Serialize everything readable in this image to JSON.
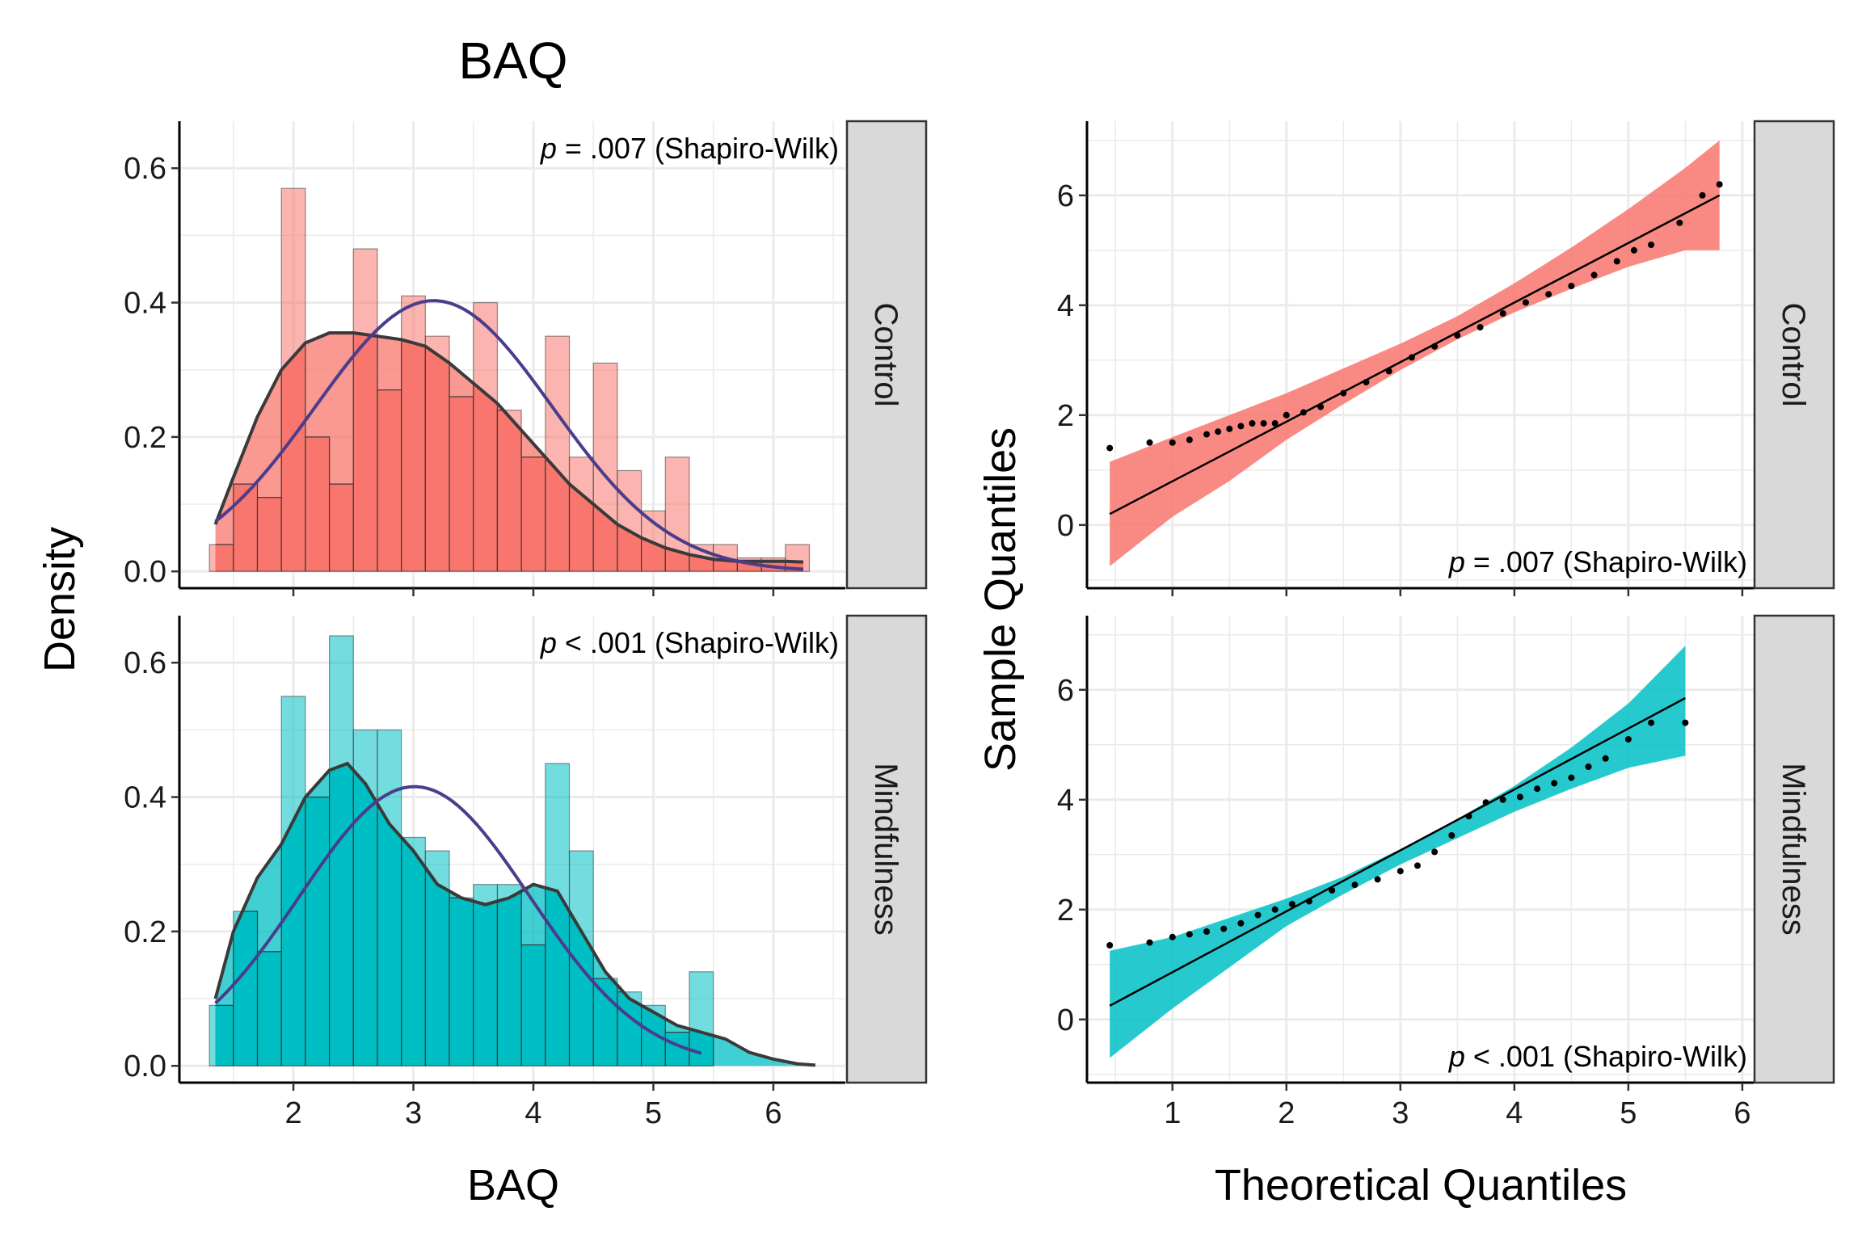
{
  "title": "BAQ",
  "colors": {
    "control": "#F8766D",
    "mindfulness": "#00BFC4",
    "normal_curve": "#4B3C8C",
    "density_curve": "#3A3A3A",
    "strip_fill": "#D9D9D9",
    "grid": "#EBEBEB"
  },
  "chart_data": [
    {
      "type": "bar",
      "panel": "histogram-density",
      "xlabel": "BAQ",
      "ylabel": "Density",
      "xlim": [
        1.05,
        6.6
      ],
      "ylim": [
        -0.025,
        0.67
      ],
      "x_ticks": [
        "2",
        "3",
        "4",
        "5",
        "6"
      ],
      "y_ticks": [
        "0.0",
        "0.2",
        "0.4",
        "0.6"
      ],
      "grid": true,
      "facets": [
        {
          "strip_label": "Control",
          "annotation_p": "p",
          "annotation_rest": " = .007 (Shapiro-Wilk)",
          "bin_width": 0.2,
          "bins": [
            {
              "x0": 1.3,
              "y": 0.04
            },
            {
              "x0": 1.5,
              "y": 0.13
            },
            {
              "x0": 1.7,
              "y": 0.11
            },
            {
              "x0": 1.9,
              "y": 0.57
            },
            {
              "x0": 2.1,
              "y": 0.2
            },
            {
              "x0": 2.3,
              "y": 0.13
            },
            {
              "x0": 2.5,
              "y": 0.48
            },
            {
              "x0": 2.7,
              "y": 0.27
            },
            {
              "x0": 2.9,
              "y": 0.41
            },
            {
              "x0": 3.1,
              "y": 0.35
            },
            {
              "x0": 3.3,
              "y": 0.26
            },
            {
              "x0": 3.5,
              "y": 0.4
            },
            {
              "x0": 3.7,
              "y": 0.24
            },
            {
              "x0": 3.9,
              "y": 0.17
            },
            {
              "x0": 4.1,
              "y": 0.35
            },
            {
              "x0": 4.3,
              "y": 0.17
            },
            {
              "x0": 4.5,
              "y": 0.31
            },
            {
              "x0": 4.7,
              "y": 0.15
            },
            {
              "x0": 4.9,
              "y": 0.09
            },
            {
              "x0": 5.1,
              "y": 0.17
            },
            {
              "x0": 5.3,
              "y": 0.04
            },
            {
              "x0": 5.5,
              "y": 0.04
            },
            {
              "x0": 5.7,
              "y": 0.02
            },
            {
              "x0": 5.9,
              "y": 0.02
            },
            {
              "x0": 6.1,
              "y": 0.04
            }
          ],
          "density": {
            "x": [
              1.35,
              1.5,
              1.7,
              1.9,
              2.1,
              2.3,
              2.5,
              2.7,
              2.9,
              3.1,
              3.3,
              3.5,
              3.7,
              3.9,
              4.1,
              4.3,
              4.5,
              4.7,
              4.9,
              5.1,
              5.3,
              5.5,
              5.7,
              5.9,
              6.1,
              6.25
            ],
            "y": [
              0.07,
              0.14,
              0.23,
              0.3,
              0.34,
              0.355,
              0.355,
              0.35,
              0.345,
              0.335,
              0.31,
              0.28,
              0.25,
              0.21,
              0.17,
              0.13,
              0.1,
              0.07,
              0.05,
              0.035,
              0.025,
              0.018,
              0.015,
              0.015,
              0.015,
              0.014
            ]
          },
          "normal": {
            "mean": 3.17,
            "sd": 0.99,
            "x_range": [
              1.35,
              6.25
            ]
          }
        },
        {
          "strip_label": "Mindfulness",
          "annotation_p": "p",
          "annotation_rest": " < .001 (Shapiro-Wilk)",
          "bin_width": 0.2,
          "bins": [
            {
              "x0": 1.3,
              "y": 0.09
            },
            {
              "x0": 1.5,
              "y": 0.23
            },
            {
              "x0": 1.7,
              "y": 0.17
            },
            {
              "x0": 1.9,
              "y": 0.55
            },
            {
              "x0": 2.1,
              "y": 0.4
            },
            {
              "x0": 2.3,
              "y": 0.64
            },
            {
              "x0": 2.5,
              "y": 0.5
            },
            {
              "x0": 2.7,
              "y": 0.5
            },
            {
              "x0": 2.9,
              "y": 0.34
            },
            {
              "x0": 3.1,
              "y": 0.32
            },
            {
              "x0": 3.3,
              "y": 0.25
            },
            {
              "x0": 3.5,
              "y": 0.27
            },
            {
              "x0": 3.7,
              "y": 0.27
            },
            {
              "x0": 3.9,
              "y": 0.18
            },
            {
              "x0": 4.1,
              "y": 0.45
            },
            {
              "x0": 4.3,
              "y": 0.32
            },
            {
              "x0": 4.5,
              "y": 0.13
            },
            {
              "x0": 4.7,
              "y": 0.11
            },
            {
              "x0": 4.9,
              "y": 0.09
            },
            {
              "x0": 5.1,
              "y": 0.05
            },
            {
              "x0": 5.3,
              "y": 0.14
            }
          ],
          "density": {
            "x": [
              1.35,
              1.5,
              1.7,
              1.9,
              2.1,
              2.3,
              2.45,
              2.6,
              2.8,
              3.0,
              3.2,
              3.4,
              3.6,
              3.8,
              4.0,
              4.2,
              4.4,
              4.6,
              4.8,
              5.0,
              5.2,
              5.4,
              5.6,
              5.8,
              6.0,
              6.2,
              6.35
            ],
            "y": [
              0.1,
              0.2,
              0.28,
              0.33,
              0.4,
              0.44,
              0.45,
              0.42,
              0.36,
              0.32,
              0.27,
              0.25,
              0.24,
              0.25,
              0.27,
              0.26,
              0.2,
              0.14,
              0.1,
              0.08,
              0.06,
              0.05,
              0.04,
              0.02,
              0.01,
              0.003,
              0.001
            ]
          },
          "normal": {
            "mean": 3.01,
            "sd": 0.96,
            "x_range": [
              1.35,
              5.4
            ]
          }
        }
      ]
    },
    {
      "type": "scatter",
      "panel": "qq",
      "xlabel": "Theoretical Quantiles",
      "ylabel": "Sample Quantiles",
      "xlim": [
        0.25,
        6.1
      ],
      "ylim": [
        -1.15,
        7.35
      ],
      "x_ticks": [
        "1",
        "2",
        "3",
        "4",
        "5",
        "6"
      ],
      "y_ticks": [
        "0",
        "2",
        "4",
        "6"
      ],
      "grid": true,
      "facets": [
        {
          "strip_label": "Control",
          "annotation_p": "p",
          "annotation_rest": " = .007 (Shapiro-Wilk)",
          "line": {
            "x": [
              0.45,
              5.8
            ],
            "y": [
              0.2,
              6.0
            ]
          },
          "band": {
            "x": [
              0.45,
              1.0,
              1.5,
              2.0,
              2.5,
              3.0,
              3.5,
              4.0,
              4.5,
              5.0,
              5.5,
              5.8
            ],
            "lower": [
              -0.75,
              0.15,
              0.8,
              1.55,
              2.2,
              2.82,
              3.38,
              3.87,
              4.3,
              4.7,
              5.0,
              5.0
            ],
            "upper": [
              1.15,
              1.6,
              2.0,
              2.4,
              2.85,
              3.3,
              3.8,
              4.4,
              5.05,
              5.75,
              6.5,
              7.0
            ]
          },
          "points": {
            "x": [
              0.45,
              0.8,
              1.0,
              1.15,
              1.3,
              1.4,
              1.5,
              1.6,
              1.7,
              1.8,
              1.9,
              2.0,
              2.15,
              2.3,
              2.5,
              2.7,
              2.9,
              3.1,
              3.3,
              3.5,
              3.7,
              3.9,
              4.1,
              4.3,
              4.5,
              4.7,
              4.9,
              5.05,
              5.2,
              5.45,
              5.65,
              5.8
            ],
            "y": [
              1.4,
              1.5,
              1.5,
              1.55,
              1.65,
              1.7,
              1.75,
              1.8,
              1.85,
              1.85,
              1.85,
              2.0,
              2.05,
              2.15,
              2.4,
              2.6,
              2.8,
              3.05,
              3.25,
              3.45,
              3.6,
              3.85,
              4.05,
              4.2,
              4.35,
              4.55,
              4.8,
              5.0,
              5.1,
              5.5,
              6.0,
              6.2
            ]
          }
        },
        {
          "strip_label": "Mindfulness",
          "annotation_p": "p",
          "annotation_rest": " < .001 (Shapiro-Wilk)",
          "line": {
            "x": [
              0.45,
              5.5
            ],
            "y": [
              0.25,
              5.85
            ]
          },
          "band": {
            "x": [
              0.45,
              1.0,
              1.5,
              2.0,
              2.5,
              3.0,
              3.5,
              4.0,
              4.5,
              5.0,
              5.5
            ],
            "lower": [
              -0.7,
              0.2,
              0.95,
              1.7,
              2.28,
              2.82,
              3.3,
              3.78,
              4.2,
              4.58,
              4.8
            ],
            "upper": [
              1.25,
              1.5,
              1.85,
              2.2,
              2.6,
              3.1,
              3.65,
              4.25,
              4.95,
              5.75,
              6.8
            ]
          },
          "points": {
            "x": [
              0.45,
              0.8,
              1.0,
              1.15,
              1.3,
              1.45,
              1.6,
              1.75,
              1.9,
              2.05,
              2.2,
              2.4,
              2.6,
              2.8,
              3.0,
              3.15,
              3.3,
              3.45,
              3.6,
              3.75,
              3.9,
              4.05,
              4.2,
              4.35,
              4.5,
              4.65,
              4.8,
              5.0,
              5.2,
              5.5
            ],
            "y": [
              1.35,
              1.4,
              1.5,
              1.55,
              1.6,
              1.65,
              1.75,
              1.9,
              2.0,
              2.1,
              2.15,
              2.35,
              2.45,
              2.55,
              2.7,
              2.8,
              3.05,
              3.35,
              3.7,
              3.95,
              4.0,
              4.05,
              4.2,
              4.3,
              4.4,
              4.6,
              4.75,
              5.1,
              5.4,
              5.4
            ]
          }
        }
      ]
    }
  ]
}
